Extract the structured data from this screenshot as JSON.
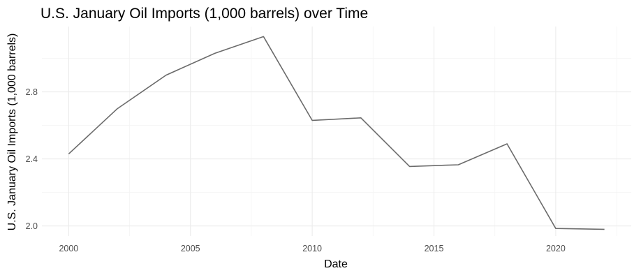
{
  "chart_data": {
    "type": "line",
    "title": "U.S. January Oil Imports (1,000 barrels) over Time",
    "xlabel": "Date",
    "ylabel": "U.S. January Oil Imports (1,000 barrels)",
    "x": [
      2000,
      2002,
      2004,
      2006,
      2008,
      2010,
      2012,
      2014,
      2016,
      2018,
      2020,
      2022
    ],
    "series": [
      {
        "values": [
          2.43,
          2.7,
          2.9,
          3.03,
          3.13,
          2.63,
          2.645,
          2.355,
          2.365,
          2.49,
          1.985,
          1.98
        ]
      }
    ],
    "xlim": [
      1998.9,
      2023.1
    ],
    "ylim": [
      1.94,
      3.19
    ],
    "x_ticks": [
      2000,
      2005,
      2010,
      2015,
      2020
    ],
    "y_ticks": [
      2.0,
      2.4,
      2.8
    ],
    "x_tick_labels": [
      "2000",
      "2005",
      "2010",
      "2015",
      "2020"
    ],
    "y_tick_labels": [
      "2.0",
      "2.4",
      "2.8"
    ],
    "x_minor_ticks": [
      2002.5,
      2007.5,
      2012.5,
      2017.5,
      2022.5
    ],
    "y_minor_ticks": [
      2.2,
      2.6,
      3.0
    ],
    "grid": true,
    "legend": "none",
    "colors": {
      "line": "#6b6b6b",
      "grid": "#ebebeb",
      "background": "#ffffff"
    }
  }
}
